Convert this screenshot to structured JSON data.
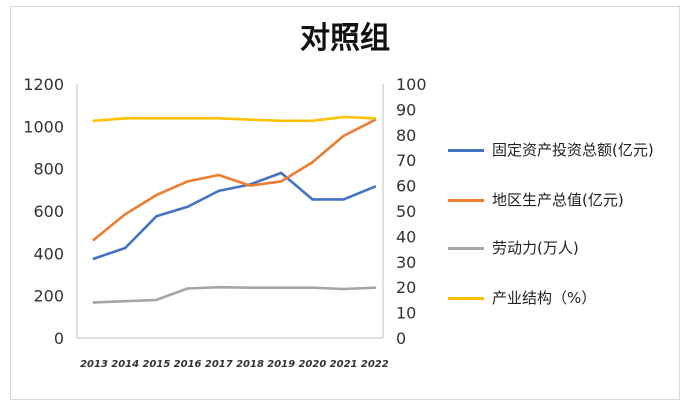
{
  "chart_data": {
    "type": "line",
    "title": "对照组",
    "categories": [
      "2013",
      "2014",
      "2015",
      "2016",
      "2017",
      "2018",
      "2019",
      "2020",
      "2021",
      "2022"
    ],
    "y_left": {
      "ticks": [
        "0",
        "200",
        "400",
        "600",
        "800",
        "1000",
        "1200"
      ],
      "range": [
        0,
        1200
      ]
    },
    "y_right": {
      "ticks": [
        "0",
        "10",
        "20",
        "30",
        "40",
        "50",
        "60",
        "70",
        "80",
        "90",
        "100"
      ],
      "range": [
        0,
        100
      ]
    },
    "series": [
      {
        "name": "固定资产投资总额(亿元)",
        "axis": "left",
        "color": "#4472c4",
        "values": [
          375,
          425,
          575,
          620,
          695,
          725,
          780,
          655,
          655,
          715
        ]
      },
      {
        "name": "地区生产总值(亿元)",
        "axis": "left",
        "color": "#ed7d31",
        "values": [
          465,
          585,
          675,
          740,
          770,
          720,
          740,
          830,
          955,
          1030
        ]
      },
      {
        "name": "劳动力(万人)",
        "axis": "right",
        "color": "#a5a5a5",
        "values": [
          14,
          14.5,
          15,
          19.5,
          20,
          19.8,
          19.8,
          19.8,
          19.3,
          19.8
        ]
      },
      {
        "name": "产业结构（%）",
        "axis": "right",
        "color": "#ffc000",
        "values": [
          85.5,
          86.5,
          86.5,
          86.5,
          86.5,
          86,
          85.5,
          85.5,
          87,
          86.5
        ]
      }
    ],
    "grid": false,
    "legend_position": "right"
  }
}
